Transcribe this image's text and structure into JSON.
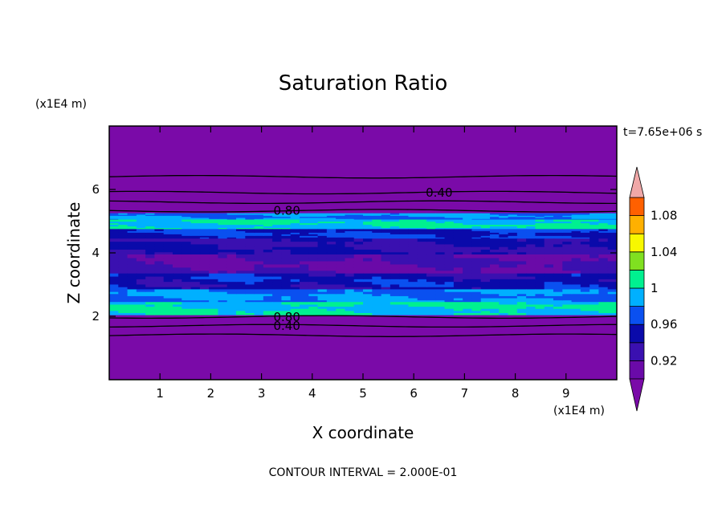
{
  "chart_data": {
    "type": "heatmap",
    "title": "Saturation Ratio",
    "xlabel": "X coordinate",
    "ylabel": "Z coordinate",
    "x_unit": "(x1E4 m)",
    "z_unit": "(x1E4 m)",
    "time_label": "t=7.65e+06 s",
    "footer": "CONTOUR INTERVAL = 2.000E-01",
    "xlim": [
      0,
      10
    ],
    "ylim": [
      0,
      8
    ],
    "x_ticks": [
      {
        "value": 1,
        "label": "1"
      },
      {
        "value": 2,
        "label": "2"
      },
      {
        "value": 3,
        "label": "3"
      },
      {
        "value": 4,
        "label": "4"
      },
      {
        "value": 5,
        "label": "5"
      },
      {
        "value": 6,
        "label": "6"
      },
      {
        "value": 7,
        "label": "7"
      },
      {
        "value": 8,
        "label": "8"
      },
      {
        "value": 9,
        "label": "9"
      }
    ],
    "y_ticks": [
      {
        "value": 2,
        "label": "2"
      },
      {
        "value": 4,
        "label": "4"
      },
      {
        "value": 6,
        "label": "6"
      }
    ],
    "colorbar": {
      "levels": [
        0.9,
        0.92,
        0.94,
        0.96,
        0.98,
        1.0,
        1.02,
        1.04,
        1.06,
        1.08,
        1.1
      ],
      "colors": [
        "#6a0aa8",
        "#3a10b0",
        "#0a0aaa",
        "#0a50f0",
        "#00b0ff",
        "#00f090",
        "#80e020",
        "#f8f800",
        "#ffb000",
        "#ff6000",
        "#ff2010"
      ],
      "under_color": "#7a0aa8",
      "over_color": "#f0a8a8",
      "labels": [
        {
          "value": 0.92,
          "label": "0.92"
        },
        {
          "value": 0.96,
          "label": "0.96"
        },
        {
          "value": 1.0,
          "label": "1"
        },
        {
          "value": 1.04,
          "label": "1.04"
        },
        {
          "value": 1.08,
          "label": "1.08"
        }
      ]
    },
    "bands": [
      {
        "z0": 5.05,
        "z1": 5.25,
        "ratio_range": [
          0.96,
          1.0
        ]
      },
      {
        "z0": 4.75,
        "z1": 5.05,
        "ratio_range": [
          0.98,
          1.02
        ]
      },
      {
        "z0": 4.45,
        "z1": 4.75,
        "ratio_range": [
          0.94,
          0.98
        ]
      },
      {
        "z0": 3.95,
        "z1": 4.45,
        "ratio_range": [
          0.92,
          0.96
        ]
      },
      {
        "z0": 3.35,
        "z1": 3.95,
        "ratio_range": [
          0.9,
          0.94
        ]
      },
      {
        "z0": 2.85,
        "z1": 3.35,
        "ratio_range": [
          0.92,
          0.98
        ]
      },
      {
        "z0": 2.45,
        "z1": 2.85,
        "ratio_range": [
          0.96,
          1.0
        ]
      },
      {
        "z0": 2.05,
        "z1": 2.45,
        "ratio_range": [
          0.98,
          1.02
        ]
      }
    ],
    "contour_lines": [
      {
        "z": 6.4,
        "label": ""
      },
      {
        "z": 5.9,
        "label": "0.40",
        "label_x": 6.5
      },
      {
        "z": 5.6,
        "label": ""
      },
      {
        "z": 5.33,
        "label": "0.80",
        "label_x": 3.5
      },
      {
        "z": 1.98,
        "label": "0.80",
        "label_x": 3.5
      },
      {
        "z": 1.7,
        "label": "0.40",
        "label_x": 3.5
      },
      {
        "z": 1.4,
        "label": ""
      }
    ]
  }
}
